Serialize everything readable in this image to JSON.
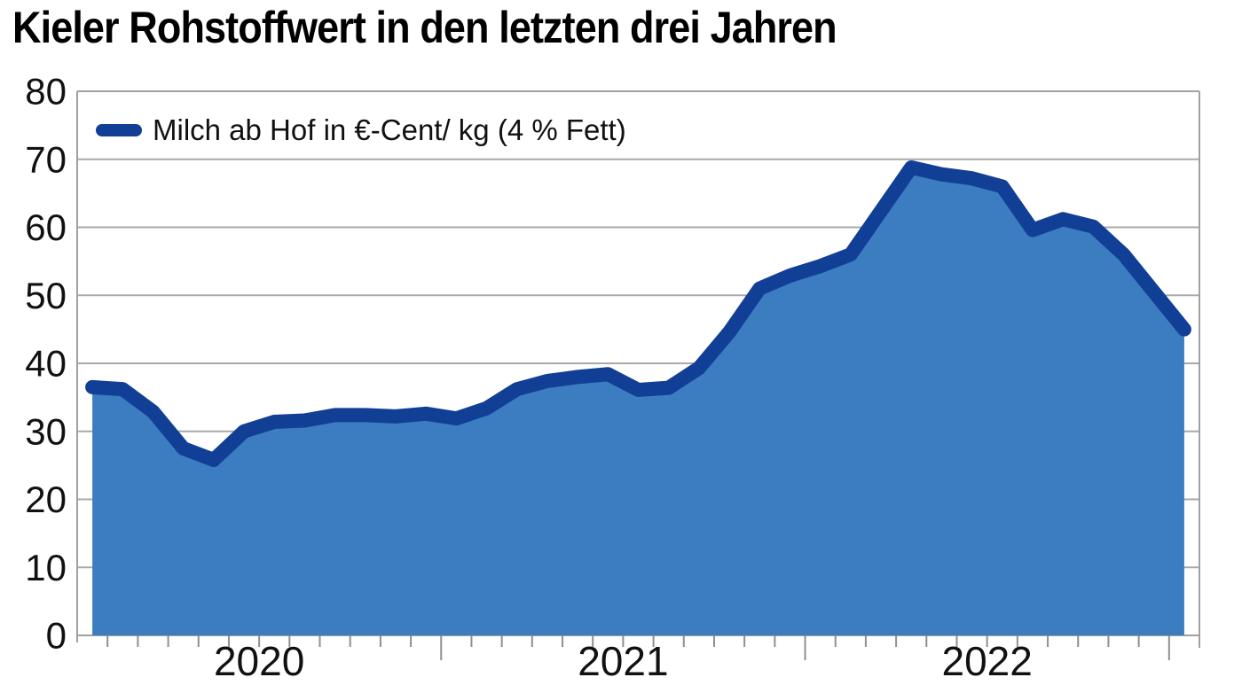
{
  "title": "Kieler Rohstoffwert in den letzten drei Jahren",
  "legend": {
    "label": "Milch ab Hof in €-Cent/ kg (4 % Fett)"
  },
  "colors": {
    "line": "#123f96",
    "area": "#3b7dc0",
    "grid": "#a9a9a9",
    "axis_border": "#a0a0a0",
    "tick": "#8f8f8f",
    "axis_text": "#111111",
    "title_text": "#000000",
    "background": "#ffffff"
  },
  "chart_data": {
    "type": "area",
    "title": "Kieler Rohstoffwert in den letzten drei Jahren",
    "xlabel": "",
    "ylabel": "",
    "ylim": [
      0,
      80
    ],
    "y_ticks": [
      0,
      10,
      20,
      30,
      40,
      50,
      60,
      70,
      80
    ],
    "grid": true,
    "legend_position": "top-left-inside",
    "x_year_labels": [
      "2020",
      "2021",
      "2022"
    ],
    "series": [
      {
        "name": "Milch ab Hof in €-Cent/ kg (4 % Fett)",
        "unit": "€-Cent/kg",
        "x": [
          "2020-01",
          "2020-02",
          "2020-03",
          "2020-04",
          "2020-05",
          "2020-06",
          "2020-07",
          "2020-08",
          "2020-09",
          "2020-10",
          "2020-11",
          "2020-12",
          "2021-01",
          "2021-02",
          "2021-03",
          "2021-04",
          "2021-05",
          "2021-06",
          "2021-07",
          "2021-08",
          "2021-09",
          "2021-10",
          "2021-11",
          "2021-12",
          "2022-01",
          "2022-02",
          "2022-03",
          "2022-04",
          "2022-05",
          "2022-06",
          "2022-07",
          "2022-08",
          "2022-09",
          "2022-10",
          "2022-11",
          "2022-12",
          "2023-01"
        ],
        "values": [
          36.5,
          36.2,
          32.9,
          27.5,
          25.8,
          30.0,
          31.4,
          31.6,
          32.4,
          32.4,
          32.2,
          32.6,
          31.9,
          33.4,
          36.2,
          37.4,
          38.0,
          38.4,
          36.1,
          36.4,
          39.3,
          44.6,
          51.0,
          52.9,
          54.3,
          56.0,
          62.4,
          68.8,
          67.8,
          67.2,
          66.0,
          59.6,
          61.2,
          60.1,
          56.0,
          50.5,
          45.0
        ]
      }
    ]
  }
}
